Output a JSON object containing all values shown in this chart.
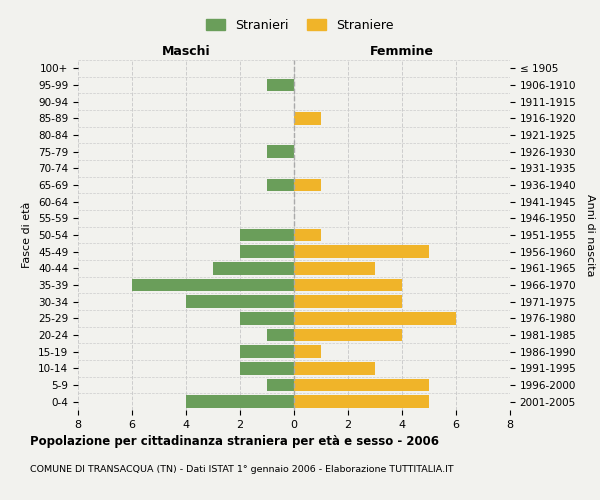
{
  "age_groups": [
    "0-4",
    "5-9",
    "10-14",
    "15-19",
    "20-24",
    "25-29",
    "30-34",
    "35-39",
    "40-44",
    "45-49",
    "50-54",
    "55-59",
    "60-64",
    "65-69",
    "70-74",
    "75-79",
    "80-84",
    "85-89",
    "90-94",
    "95-99",
    "100+"
  ],
  "birth_years": [
    "2001-2005",
    "1996-2000",
    "1991-1995",
    "1986-1990",
    "1981-1985",
    "1976-1980",
    "1971-1975",
    "1966-1970",
    "1961-1965",
    "1956-1960",
    "1951-1955",
    "1946-1950",
    "1941-1945",
    "1936-1940",
    "1931-1935",
    "1926-1930",
    "1921-1925",
    "1916-1920",
    "1911-1915",
    "1906-1910",
    "≤ 1905"
  ],
  "males": [
    4,
    1,
    2,
    2,
    1,
    2,
    4,
    6,
    3,
    2,
    2,
    0,
    0,
    1,
    0,
    1,
    0,
    0,
    0,
    1,
    0
  ],
  "females": [
    5,
    5,
    3,
    1,
    4,
    6,
    4,
    4,
    3,
    5,
    1,
    0,
    0,
    1,
    0,
    0,
    0,
    1,
    0,
    0,
    0
  ],
  "male_color": "#6a9e5a",
  "female_color": "#f0b429",
  "background_color": "#f2f2ee",
  "grid_color": "#cccccc",
  "title": "Popolazione per cittadinanza straniera per età e sesso - 2006",
  "subtitle": "COMUNE DI TRANSACQUA (TN) - Dati ISTAT 1° gennaio 2006 - Elaborazione TUTTITALIA.IT",
  "xlabel_left": "Maschi",
  "xlabel_right": "Femmine",
  "ylabel_left": "Fasce di età",
  "ylabel_right": "Anni di nascita",
  "legend_male": "Stranieri",
  "legend_female": "Straniere",
  "xlim": 8,
  "bar_height": 0.75
}
